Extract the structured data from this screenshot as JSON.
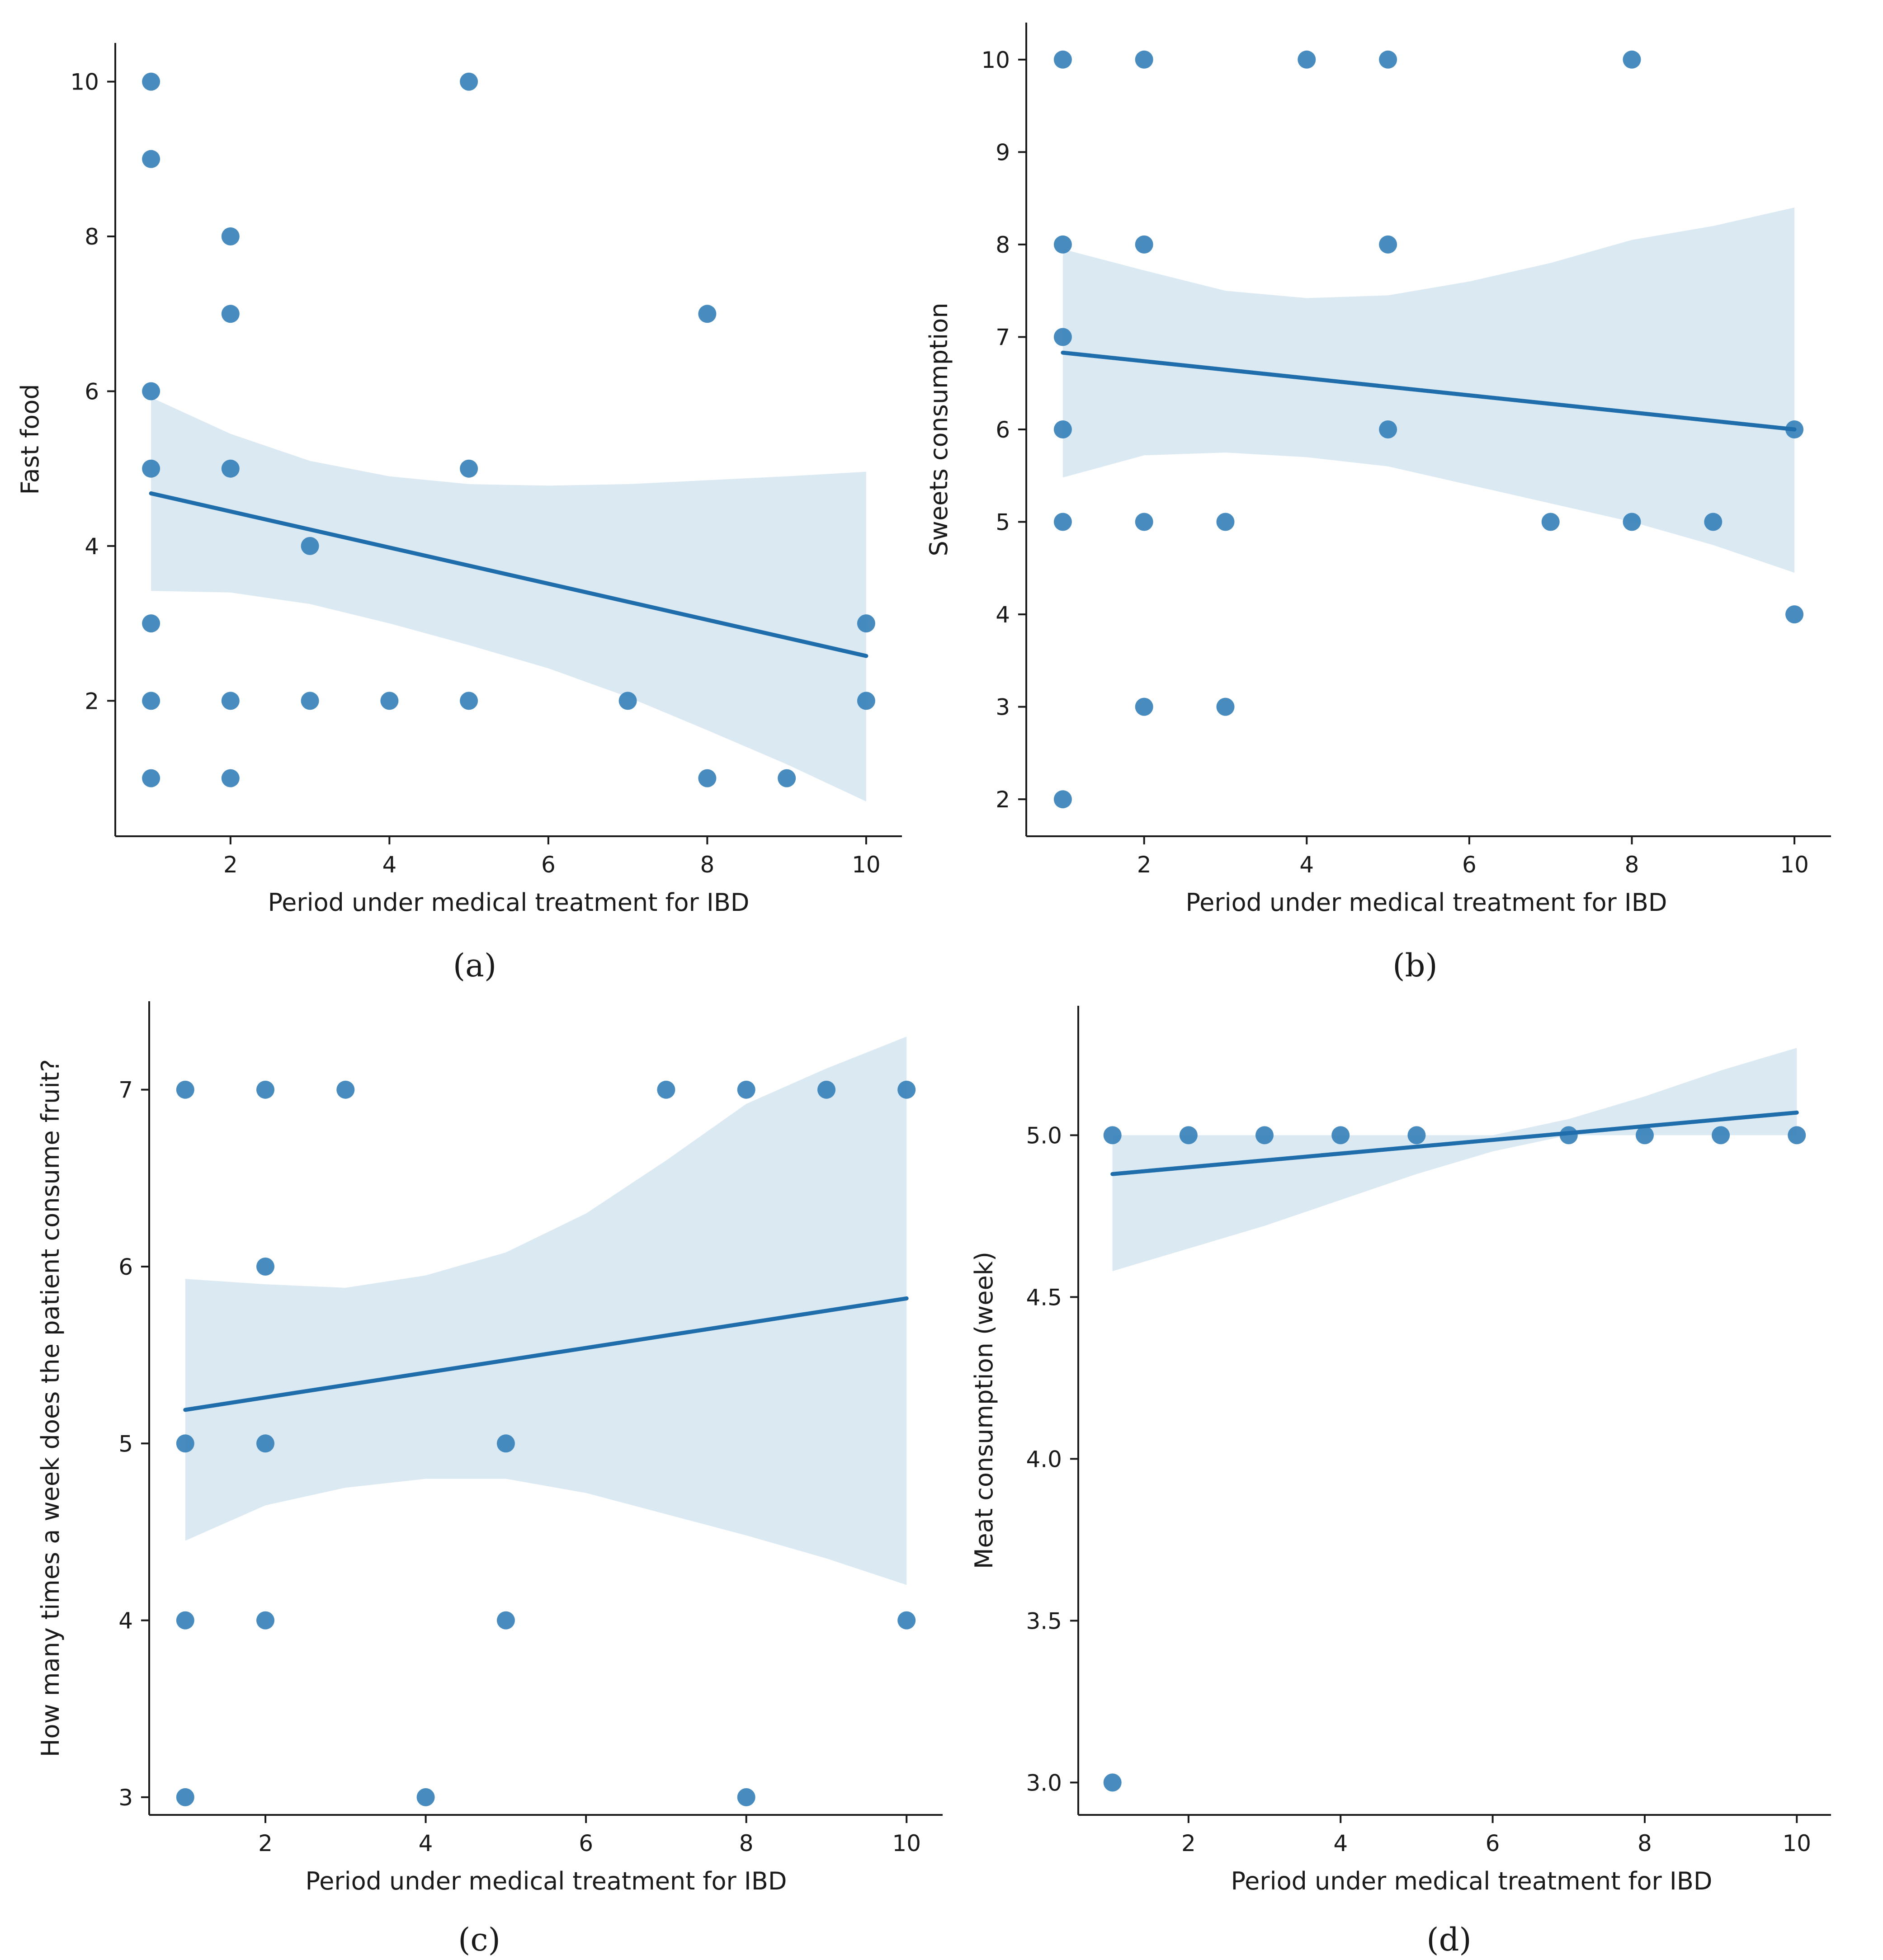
{
  "chart_data": [
    {
      "id": "a",
      "type": "scatter",
      "caption": "(a)",
      "xlabel": "Period under medical treatment for IBD",
      "ylabel": "Fast food",
      "xlim": [
        0.55,
        10.45
      ],
      "ylim": [
        0.25,
        10.5
      ],
      "xticks": [
        2,
        4,
        6,
        8,
        10
      ],
      "yticks": [
        2,
        4,
        6,
        8,
        10
      ],
      "points": [
        [
          1,
          10
        ],
        [
          1,
          9
        ],
        [
          1,
          6
        ],
        [
          1,
          5
        ],
        [
          1,
          3
        ],
        [
          1,
          2
        ],
        [
          1,
          1
        ],
        [
          2,
          8
        ],
        [
          2,
          7
        ],
        [
          2,
          5
        ],
        [
          2,
          2
        ],
        [
          2,
          1
        ],
        [
          3,
          4
        ],
        [
          3,
          2
        ],
        [
          4,
          2
        ],
        [
          5,
          10
        ],
        [
          5,
          5
        ],
        [
          5,
          2
        ],
        [
          7,
          2
        ],
        [
          8,
          7
        ],
        [
          8,
          1
        ],
        [
          9,
          1
        ],
        [
          10,
          3
        ],
        [
          10,
          2
        ]
      ],
      "fit_line": [
        [
          1,
          4.68
        ],
        [
          10,
          2.58
        ]
      ],
      "ci_upper": [
        [
          1,
          5.92
        ],
        [
          2,
          5.45
        ],
        [
          3,
          5.1
        ],
        [
          4,
          4.9
        ],
        [
          5,
          4.8
        ],
        [
          6,
          4.78
        ],
        [
          7,
          4.8
        ],
        [
          8,
          4.85
        ],
        [
          9,
          4.9
        ],
        [
          10,
          4.96
        ]
      ],
      "ci_lower": [
        [
          1,
          3.42
        ],
        [
          2,
          3.4
        ],
        [
          3,
          3.25
        ],
        [
          4,
          3.0
        ],
        [
          5,
          2.72
        ],
        [
          6,
          2.42
        ],
        [
          7,
          2.05
        ],
        [
          8,
          1.62
        ],
        [
          9,
          1.18
        ],
        [
          10,
          0.7
        ]
      ]
    },
    {
      "id": "b",
      "type": "scatter",
      "caption": "(b)",
      "xlabel": "Period under medical treatment for IBD",
      "ylabel": "Sweets consumption",
      "xlim": [
        0.55,
        10.45
      ],
      "ylim": [
        1.6,
        10.4
      ],
      "xticks": [
        2,
        4,
        6,
        8,
        10
      ],
      "yticks": [
        2,
        3,
        4,
        5,
        6,
        7,
        8,
        9,
        10
      ],
      "points": [
        [
          1,
          10
        ],
        [
          1,
          8
        ],
        [
          1,
          7
        ],
        [
          1,
          6
        ],
        [
          1,
          5
        ],
        [
          1,
          2
        ],
        [
          2,
          10
        ],
        [
          2,
          8
        ],
        [
          2,
          5
        ],
        [
          2,
          3
        ],
        [
          3,
          5
        ],
        [
          3,
          3
        ],
        [
          4,
          10
        ],
        [
          5,
          10
        ],
        [
          5,
          8
        ],
        [
          5,
          6
        ],
        [
          7,
          5
        ],
        [
          8,
          10
        ],
        [
          8,
          5
        ],
        [
          9,
          5
        ],
        [
          10,
          6
        ],
        [
          10,
          4
        ]
      ],
      "fit_line": [
        [
          1,
          6.83
        ],
        [
          10,
          6.0
        ]
      ],
      "ci_upper": [
        [
          1,
          7.95
        ],
        [
          2,
          7.72
        ],
        [
          3,
          7.5
        ],
        [
          4,
          7.42
        ],
        [
          5,
          7.45
        ],
        [
          6,
          7.6
        ],
        [
          7,
          7.8
        ],
        [
          8,
          8.05
        ],
        [
          9,
          8.2
        ],
        [
          10,
          8.4
        ]
      ],
      "ci_lower": [
        [
          1,
          5.48
        ],
        [
          2,
          5.72
        ],
        [
          3,
          5.75
        ],
        [
          4,
          5.7
        ],
        [
          5,
          5.6
        ],
        [
          6,
          5.4
        ],
        [
          7,
          5.2
        ],
        [
          8,
          5.0
        ],
        [
          9,
          4.75
        ],
        [
          10,
          4.45
        ]
      ]
    },
    {
      "id": "c",
      "type": "scatter",
      "caption": "(c)",
      "xlabel": "Period under medical treatment for IBD",
      "ylabel": "How many times a week does the patient consume fruit?",
      "xlim": [
        0.55,
        10.45
      ],
      "ylim": [
        2.9,
        7.5
      ],
      "xticks": [
        2,
        4,
        6,
        8,
        10
      ],
      "yticks": [
        3,
        4,
        5,
        6,
        7
      ],
      "points": [
        [
          1,
          7
        ],
        [
          1,
          5
        ],
        [
          1,
          4
        ],
        [
          1,
          3
        ],
        [
          2,
          7
        ],
        [
          2,
          6
        ],
        [
          2,
          5
        ],
        [
          2,
          4
        ],
        [
          3,
          7
        ],
        [
          4,
          3
        ],
        [
          5,
          5
        ],
        [
          5,
          4
        ],
        [
          7,
          7
        ],
        [
          8,
          7
        ],
        [
          8,
          3
        ],
        [
          9,
          7
        ],
        [
          10,
          7
        ],
        [
          10,
          4
        ]
      ],
      "fit_line": [
        [
          1,
          5.19
        ],
        [
          10,
          5.82
        ]
      ],
      "ci_upper": [
        [
          1,
          5.93
        ],
        [
          2,
          5.9
        ],
        [
          3,
          5.88
        ],
        [
          4,
          5.95
        ],
        [
          5,
          6.08
        ],
        [
          6,
          6.3
        ],
        [
          7,
          6.6
        ],
        [
          8,
          6.92
        ],
        [
          9,
          7.12
        ],
        [
          10,
          7.3
        ]
      ],
      "ci_lower": [
        [
          1,
          4.45
        ],
        [
          2,
          4.65
        ],
        [
          3,
          4.75
        ],
        [
          4,
          4.8
        ],
        [
          5,
          4.8
        ],
        [
          6,
          4.72
        ],
        [
          7,
          4.6
        ],
        [
          8,
          4.48
        ],
        [
          9,
          4.35
        ],
        [
          10,
          4.2
        ]
      ]
    },
    {
      "id": "d",
      "type": "scatter",
      "caption": "(d)",
      "xlabel": "Period under medical treatment for IBD",
      "ylabel": "Meat consumption (week)",
      "xlim": [
        0.55,
        10.45
      ],
      "ylim": [
        2.9,
        5.4
      ],
      "xticks": [
        2,
        4,
        6,
        8,
        10
      ],
      "yticks": [
        3.0,
        3.5,
        4.0,
        4.5,
        5.0
      ],
      "ytick_labels": [
        "3.0",
        "3.5",
        "4.0",
        "4.5",
        "5.0"
      ],
      "points": [
        [
          1,
          5
        ],
        [
          1,
          3
        ],
        [
          2,
          5
        ],
        [
          3,
          5
        ],
        [
          4,
          5
        ],
        [
          5,
          5
        ],
        [
          7,
          5
        ],
        [
          8,
          5
        ],
        [
          9,
          5
        ],
        [
          10,
          5
        ]
      ],
      "fit_line": [
        [
          1,
          4.88
        ],
        [
          10,
          5.07
        ]
      ],
      "ci_upper": [
        [
          1,
          5.0
        ],
        [
          2,
          5.0
        ],
        [
          3,
          5.0
        ],
        [
          4,
          5.0
        ],
        [
          5,
          5.0
        ],
        [
          6,
          5.0
        ],
        [
          7,
          5.05
        ],
        [
          8,
          5.12
        ],
        [
          9,
          5.2
        ],
        [
          10,
          5.27
        ]
      ],
      "ci_lower": [
        [
          1,
          4.58
        ],
        [
          2,
          4.65
        ],
        [
          3,
          4.72
        ],
        [
          4,
          4.8
        ],
        [
          5,
          4.88
        ],
        [
          6,
          4.95
        ],
        [
          7,
          5.0
        ],
        [
          8,
          5.0
        ],
        [
          9,
          5.0
        ],
        [
          10,
          5.0
        ]
      ]
    }
  ]
}
